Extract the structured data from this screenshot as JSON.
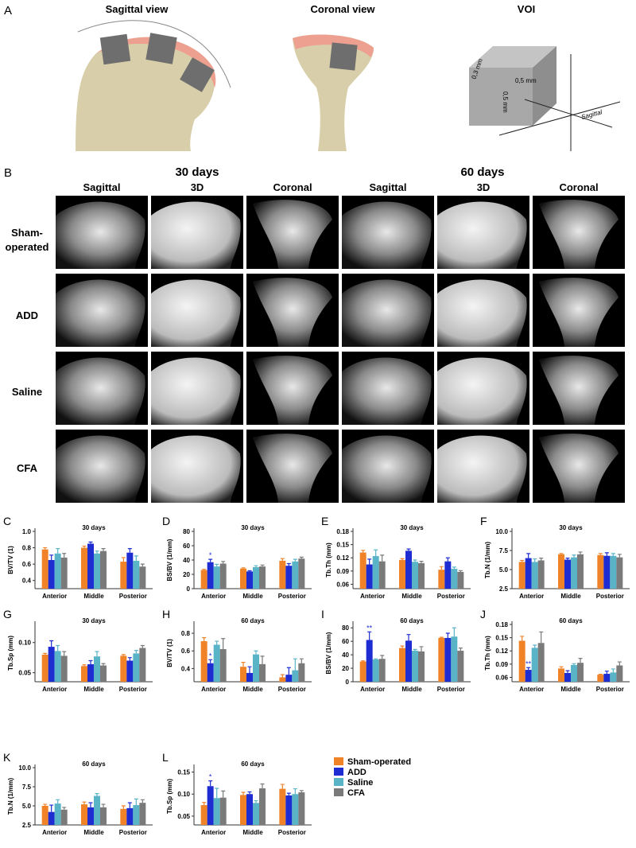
{
  "panel_a": {
    "label": "A",
    "views": [
      "Sagittal view",
      "Coronal view",
      "VOI"
    ],
    "voi_labels": [
      "0,3 mm",
      "0,5 mm",
      "0,5 mm",
      "Sagittal"
    ]
  },
  "panel_b": {
    "label": "B",
    "timepoints": [
      "30 days",
      "60 days"
    ],
    "columns": [
      "Sagittal",
      "3D",
      "Coronal",
      "Sagittal",
      "3D",
      "Coronal"
    ],
    "rows": [
      "Sham-operated",
      "ADD",
      "Saline",
      "CFA"
    ]
  },
  "legend": {
    "names": [
      "Sham-operated",
      "ADD",
      "Saline",
      "CFA"
    ],
    "colors": [
      "#f08228",
      "#1e2dd2",
      "#5ab4c8",
      "#7a7a7a"
    ]
  },
  "chart_data": [
    {
      "type": "bar",
      "panel": "C",
      "title": "30 days",
      "y_label": "BV/TV (1)",
      "categories": [
        "Anterior",
        "Middle",
        "Posterior"
      ],
      "ylim": [
        0.3,
        1.0
      ],
      "yticks": [
        0.4,
        0.6,
        0.8,
        {
          "value": 1,
          "label": "1.0"
        }
      ],
      "series": [
        {
          "values": [
            0.78,
            0.8,
            0.63
          ],
          "errors": [
            0.02,
            0.02,
            0.05
          ]
        },
        {
          "values": [
            0.65,
            0.85,
            0.74
          ],
          "errors": [
            0.06,
            0.02,
            0.05
          ]
        },
        {
          "values": [
            0.73,
            0.73,
            0.64
          ],
          "errors": [
            0.06,
            0.03,
            0.06
          ]
        },
        {
          "values": [
            0.68,
            0.76,
            0.57
          ],
          "errors": [
            0.05,
            0.03,
            0.03
          ]
        }
      ]
    },
    {
      "type": "bar",
      "panel": "D",
      "title": "30 days",
      "y_label": "BS/BV (1/mm)",
      "categories": [
        "Anterior",
        "Middle",
        "Posterior"
      ],
      "ylim": [
        0,
        80
      ],
      "yticks": [
        0,
        20,
        40,
        60,
        80
      ],
      "series": [
        {
          "values": [
            26,
            28,
            39
          ],
          "errors": [
            1,
            1,
            3
          ]
        },
        {
          "values": [
            37,
            24,
            32
          ],
          "errors": [
            4,
            1,
            3
          ],
          "significance": [
            "*",
            null,
            null
          ]
        },
        {
          "values": [
            31,
            30,
            38
          ],
          "errors": [
            3,
            2,
            3
          ]
        },
        {
          "values": [
            35,
            31,
            42
          ],
          "errors": [
            3,
            2,
            2
          ]
        }
      ]
    },
    {
      "type": "bar",
      "panel": "E",
      "title": "30 days",
      "y_label": "Tb.Th (mm)",
      "categories": [
        "Anterior",
        "Middle",
        "Posterior"
      ],
      "ylim": [
        0.05,
        0.18
      ],
      "yticks": [
        0.06,
        0.09,
        0.12,
        0.15,
        0.18
      ],
      "series": [
        {
          "values": [
            0.132,
            0.115,
            0.093
          ],
          "errors": [
            0.005,
            0.003,
            0.007
          ]
        },
        {
          "values": [
            0.105,
            0.136,
            0.112
          ],
          "errors": [
            0.012,
            0.004,
            0.008
          ]
        },
        {
          "values": [
            0.124,
            0.111,
            0.095
          ],
          "errors": [
            0.014,
            0.004,
            0.004
          ]
        },
        {
          "values": [
            0.112,
            0.108,
            0.088
          ],
          "errors": [
            0.014,
            0.004,
            0.003
          ]
        }
      ]
    },
    {
      "type": "bar",
      "panel": "F",
      "title": "30 days",
      "y_label": "Tb.N (1/mm)",
      "categories": [
        "Anterior",
        "Middle",
        "Posterior"
      ],
      "ylim": [
        2.5,
        10
      ],
      "yticks": [
        2.5,
        {
          "value": 5,
          "label": "5.0"
        },
        7.5,
        {
          "value": 10,
          "label": "10.0"
        }
      ],
      "series": [
        {
          "values": [
            6.0,
            7.0,
            6.9
          ],
          "errors": [
            0.2,
            0.1,
            0.2
          ]
        },
        {
          "values": [
            6.5,
            6.3,
            6.8
          ],
          "errors": [
            0.6,
            0.2,
            0.4
          ]
        },
        {
          "values": [
            6.0,
            6.6,
            6.8
          ],
          "errors": [
            0.4,
            0.3,
            0.3
          ]
        },
        {
          "values": [
            6.2,
            7.0,
            6.6
          ],
          "errors": [
            0.3,
            0.3,
            0.4
          ]
        }
      ]
    },
    {
      "type": "bar",
      "panel": "G",
      "title": "30 days",
      "y_label": "Tb.Sp (mm)",
      "categories": [
        "Anterior",
        "Middle",
        "Posterior"
      ],
      "ylim": [
        0.035,
        0.13
      ],
      "yticks": [
        0.05,
        {
          "value": 0.1,
          "label": "0.10"
        }
      ],
      "series": [
        {
          "values": [
            0.08,
            0.061,
            0.078
          ],
          "errors": [
            0.002,
            0.002,
            0.002
          ]
        },
        {
          "values": [
            0.093,
            0.064,
            0.07
          ],
          "errors": [
            0.01,
            0.006,
            0.005
          ]
        },
        {
          "values": [
            0.086,
            0.077,
            0.082
          ],
          "errors": [
            0.009,
            0.008,
            0.005
          ]
        },
        {
          "values": [
            0.078,
            0.062,
            0.091
          ],
          "errors": [
            0.007,
            0.003,
            0.004
          ]
        }
      ]
    },
    {
      "type": "bar",
      "panel": "H",
      "title": "60 days",
      "y_label": "BV/TV (1)",
      "categories": [
        "Anterior",
        "Middle",
        "Posterior"
      ],
      "ylim": [
        0.25,
        0.9
      ],
      "yticks": [
        0.4,
        0.6,
        0.8
      ],
      "series": [
        {
          "values": [
            0.71,
            0.42,
            0.3
          ],
          "errors": [
            0.04,
            0.05,
            0.03
          ]
        },
        {
          "values": [
            0.46,
            0.35,
            0.33
          ],
          "errors": [
            0.04,
            0.07,
            0.08
          ]
        },
        {
          "values": [
            0.67,
            0.56,
            0.38
          ],
          "errors": [
            0.04,
            0.04,
            0.13
          ]
        },
        {
          "values": [
            0.62,
            0.45,
            0.46
          ],
          "errors": [
            0.12,
            0.09,
            0.05
          ]
        }
      ],
      "significance": [
        null,
        [
          "*",
          null,
          null
        ],
        null,
        null
      ]
    },
    {
      "type": "bar",
      "panel": "I",
      "title": "60 days",
      "y_label": "BS/BV (1/mm)",
      "categories": [
        "Anterior",
        "Middle",
        "Posterior"
      ],
      "ylim": [
        0,
        85
      ],
      "yticks": [
        0,
        20,
        40,
        60,
        80
      ],
      "series": [
        {
          "values": [
            30,
            50,
            65
          ],
          "errors": [
            1,
            3,
            1
          ]
        },
        {
          "values": [
            62,
            61,
            65
          ],
          "errors": [
            12,
            9,
            7
          ]
        },
        {
          "values": [
            33,
            46,
            67
          ],
          "errors": [
            1,
            2,
            13
          ]
        },
        {
          "values": [
            34,
            45,
            46
          ],
          "errors": [
            5,
            7,
            4
          ]
        }
      ],
      "significance": [
        null,
        [
          "**",
          null,
          null
        ],
        null,
        null
      ]
    },
    {
      "type": "bar",
      "panel": "J",
      "title": "60 days",
      "y_label": "Tb.Th (mm)",
      "categories": [
        "Anterior",
        "Middle",
        "Posterior"
      ],
      "ylim": [
        0.05,
        0.18
      ],
      "yticks": [
        0.06,
        0.09,
        0.12,
        0.15,
        0.18
      ],
      "series": [
        {
          "values": [
            0.143,
            0.08,
            0.066
          ],
          "errors": [
            0.01,
            0.004,
            0.001
          ]
        },
        {
          "values": [
            0.077,
            0.07,
            0.068
          ],
          "errors": [
            0.005,
            0.005,
            0.006
          ]
        },
        {
          "values": [
            0.127,
            0.088,
            0.071
          ],
          "errors": [
            0.006,
            0.003,
            0.008
          ]
        },
        {
          "values": [
            0.138,
            0.093,
            0.087
          ],
          "errors": [
            0.025,
            0.01,
            0.008
          ]
        }
      ],
      "significance": [
        null,
        [
          "**",
          null,
          null
        ],
        null,
        null
      ]
    },
    {
      "type": "bar",
      "panel": "K",
      "title": "60 days",
      "y_label": "Tb.N (1/mm)",
      "categories": [
        "Anterior",
        "Middle",
        "Posterior"
      ],
      "ylim": [
        2.5,
        10
      ],
      "yticks": [
        2.5,
        {
          "value": 5,
          "label": "5.0"
        },
        7.5,
        {
          "value": 10,
          "label": "10.0"
        }
      ],
      "series": [
        {
          "values": [
            5.0,
            5.2,
            4.6
          ],
          "errors": [
            0.2,
            0.3,
            0.4
          ]
        },
        {
          "values": [
            4.2,
            4.8,
            4.7
          ],
          "errors": [
            0.9,
            0.6,
            0.7
          ]
        },
        {
          "values": [
            5.3,
            6.3,
            5.1
          ],
          "errors": [
            0.5,
            0.3,
            0.8
          ]
        },
        {
          "values": [
            4.5,
            4.8,
            5.4
          ],
          "errors": [
            0.3,
            0.4,
            0.4
          ]
        }
      ]
    },
    {
      "type": "bar",
      "panel": "L",
      "title": "60 days",
      "y_label": "Tb.Sp (mm)",
      "categories": [
        "Anterior",
        "Middle",
        "Posterior"
      ],
      "ylim": [
        0.03,
        0.16
      ],
      "yticks": [
        0.05,
        {
          "value": 0.1,
          "label": "0.10"
        },
        0.15
      ],
      "series": [
        {
          "values": [
            0.075,
            0.098,
            0.112
          ],
          "errors": [
            0.006,
            0.006,
            0.01
          ]
        },
        {
          "values": [
            0.118,
            0.1,
            0.097
          ],
          "errors": [
            0.012,
            0.005,
            0.005
          ]
        },
        {
          "values": [
            0.091,
            0.08,
            0.1
          ],
          "errors": [
            0.022,
            0.005,
            0.012
          ]
        },
        {
          "values": [
            0.092,
            0.113,
            0.104
          ],
          "errors": [
            0.015,
            0.01,
            0.004
          ]
        }
      ],
      "significance": [
        null,
        [
          "*",
          null,
          null
        ],
        null,
        null
      ]
    }
  ]
}
